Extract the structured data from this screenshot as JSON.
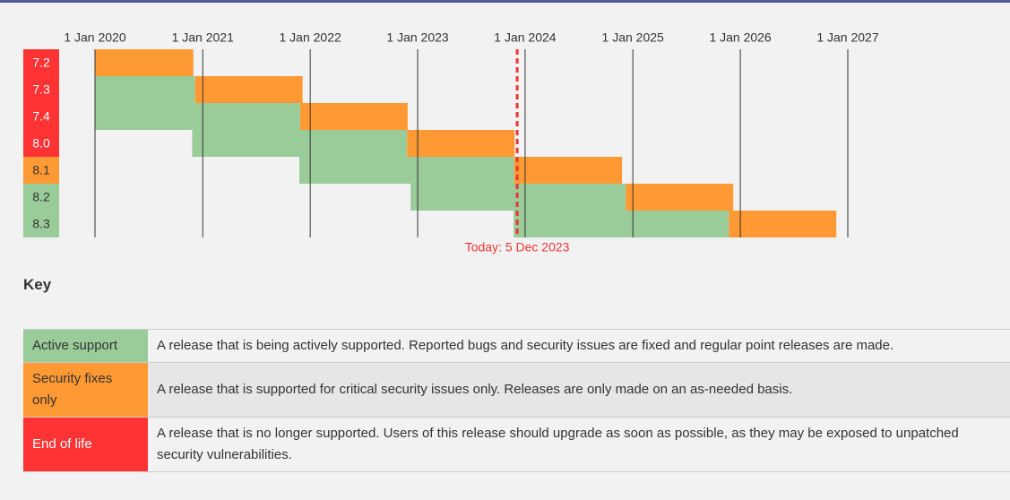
{
  "chart_data": {
    "type": "gantt",
    "categories": [
      "7.2",
      "7.3",
      "7.4",
      "8.0",
      "8.1",
      "8.2",
      "8.3"
    ],
    "category_colors": [
      "#ff3333",
      "#ff3333",
      "#ff3333",
      "#ff3333",
      "#ff9933",
      "#99cc99",
      "#99cc99"
    ],
    "series": [
      {
        "name": "Active support",
        "color": "#99cc99",
        "values": [
          null,
          [
            "2020-01-01",
            "2020-12-06"
          ],
          [
            "2020-01-01",
            "2021-11-28"
          ],
          [
            "2020-11-26",
            "2022-11-26"
          ],
          [
            "2021-11-25",
            "2023-11-25"
          ],
          [
            "2022-12-08",
            "2024-12-08"
          ],
          [
            "2023-11-23",
            "2025-11-23"
          ]
        ]
      },
      {
        "name": "Security fixes only",
        "color": "#ff9933",
        "values": [
          [
            "2020-01-01",
            "2020-11-30"
          ],
          [
            "2020-12-06",
            "2021-12-06"
          ],
          [
            "2021-11-28",
            "2022-11-28"
          ],
          [
            "2022-11-26",
            "2023-11-26"
          ],
          [
            "2023-11-25",
            "2024-11-25"
          ],
          [
            "2024-12-08",
            "2025-12-08"
          ],
          [
            "2025-11-23",
            "2026-11-23"
          ]
        ]
      }
    ],
    "xlim": [
      "2020-01-01",
      "2027-01-01"
    ],
    "xticks": [
      {
        "value": "2020-01-01",
        "label": "1 Jan 2020"
      },
      {
        "value": "2021-01-01",
        "label": "1 Jan 2021"
      },
      {
        "value": "2022-01-01",
        "label": "1 Jan 2022"
      },
      {
        "value": "2023-01-01",
        "label": "1 Jan 2023"
      },
      {
        "value": "2024-01-01",
        "label": "1 Jan 2024"
      },
      {
        "value": "2025-01-01",
        "label": "1 Jan 2025"
      },
      {
        "value": "2026-01-01",
        "label": "1 Jan 2026"
      },
      {
        "value": "2027-01-01",
        "label": "1 Jan 2027"
      }
    ],
    "today": {
      "value": "2023-12-05",
      "label": "Today: 5 Dec 2023",
      "color": "#ee3333"
    }
  },
  "key": {
    "title": "Key",
    "descriptions": [
      "A release that is being actively supported. Reported bugs and security issues are fixed and regular point releases are made.",
      "A release that is supported for critical security issues only. Releases are only made on an as-needed basis.",
      "A release that is no longer supported. Users of this release should upgrade as soon as possible, as they may be exposed to unpatched security vulnerabilities."
    ],
    "end_of_life": {
      "name": "End of life",
      "color": "#ff3333"
    }
  }
}
